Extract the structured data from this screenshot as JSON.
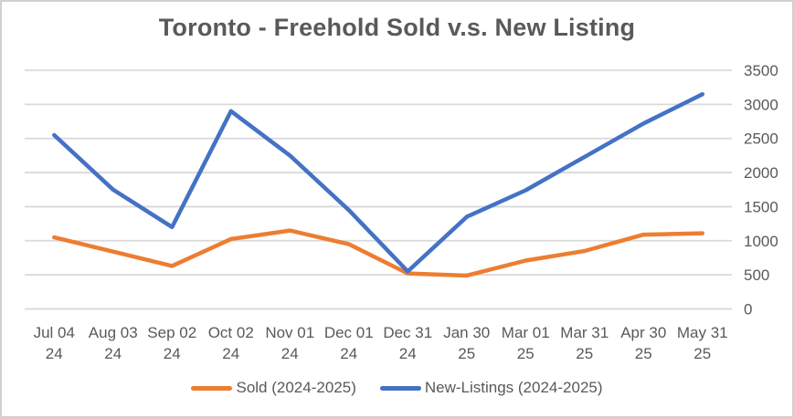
{
  "chart_data": {
    "type": "line",
    "title": "Toronto - Freehold Sold v.s. New Listing",
    "categories": [
      [
        "Jul 04",
        "24"
      ],
      [
        "Aug 03",
        "24"
      ],
      [
        "Sep 02",
        "24"
      ],
      [
        "Oct 02",
        "24"
      ],
      [
        "Nov 01",
        "24"
      ],
      [
        "Dec 01",
        "24"
      ],
      [
        "Dec 31",
        "24"
      ],
      [
        "Jan 30",
        "25"
      ],
      [
        "Mar 01",
        "25"
      ],
      [
        "Mar 31",
        "25"
      ],
      [
        "Apr 30",
        "25"
      ],
      [
        "May 31",
        "25"
      ]
    ],
    "series": [
      {
        "name": "Sold (2024-2025)",
        "color": "#ED7D31",
        "values": [
          1050,
          840,
          630,
          1025,
          1150,
          950,
          520,
          490,
          710,
          850,
          1090,
          1110
        ]
      },
      {
        "name": "New-Listings (2024-2025)",
        "color": "#4472C4",
        "values": [
          2550,
          1750,
          1200,
          2900,
          2250,
          1450,
          550,
          1350,
          1740,
          2230,
          2720,
          3150
        ]
      }
    ],
    "ylim": [
      0,
      3500
    ],
    "yticks": [
      0,
      500,
      1000,
      1500,
      2000,
      2500,
      3000,
      3500
    ],
    "y_axis_side": "right",
    "grid": true,
    "legend_position": "bottom",
    "colors": {
      "text": "#595959",
      "gridline": "#D9D9D9",
      "border": "#D0D0D0",
      "background": "#FFFFFF"
    }
  }
}
